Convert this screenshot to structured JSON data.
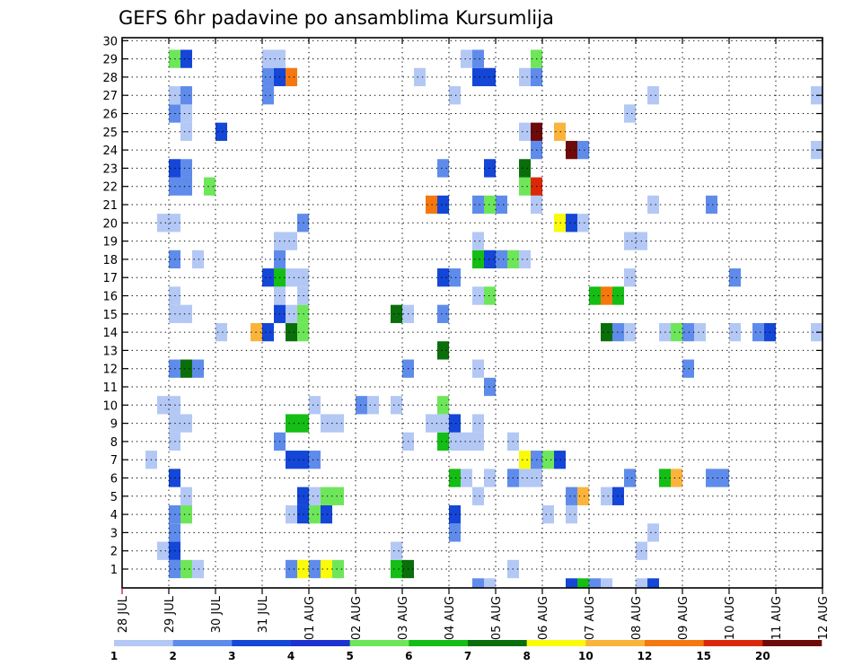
{
  "chart_data": {
    "type": "heatmap",
    "title": "GEFS 6hr padavine po ansamblima Kursumlija",
    "xlabel": "",
    "ylabel": "",
    "x_ticks": [
      "28 JUL",
      "29 JUL",
      "30 JUL",
      "31 JUL",
      "01 AUG",
      "02 AUG",
      "03 AUG",
      "04 AUG",
      "05 AUG",
      "06 AUG",
      "07 AUG",
      "08 AUG",
      "09 AUG",
      "10 AUG",
      "11 AUG",
      "12 AUG"
    ],
    "y_ticks": [
      "1",
      "2",
      "3",
      "4",
      "5",
      "6",
      "7",
      "8",
      "9",
      "10",
      "11",
      "12",
      "13",
      "14",
      "15",
      "16",
      "17",
      "18",
      "19",
      "20",
      "21",
      "22",
      "23",
      "24",
      "25",
      "26",
      "27",
      "28",
      "29",
      "30"
    ],
    "xlim": [
      0,
      60
    ],
    "ylim": [
      0,
      30
    ],
    "grid": true,
    "time_step_hours": 6,
    "colorbar": {
      "labels": [
        "1",
        "2",
        "3",
        "4",
        "5",
        "6",
        "7",
        "8",
        "10",
        "12",
        "15",
        "20"
      ],
      "colors": [
        "#b4c8f5",
        "#5f8ceb",
        "#1446d7",
        "#1e32d2",
        "#6ee65a",
        "#14be14",
        "#0a6e0a",
        "#fafa0a",
        "#fab43c",
        "#f5780f",
        "#dc280a",
        "#6e0a0a"
      ]
    },
    "cells": [
      {
        "m": 1,
        "t": [
          [
            4,
            2
          ],
          [
            5,
            5
          ],
          [
            6,
            1
          ],
          [
            14,
            2
          ],
          [
            15,
            8
          ],
          [
            16,
            2
          ],
          [
            17,
            8
          ],
          [
            18,
            5
          ],
          [
            23,
            6
          ],
          [
            24,
            7
          ],
          [
            33,
            1
          ]
        ]
      },
      {
        "m": 2,
        "t": [
          [
            3,
            1
          ],
          [
            4,
            3
          ],
          [
            23,
            1
          ],
          [
            44,
            1
          ]
        ]
      },
      {
        "m": 3,
        "t": [
          [
            4,
            2
          ],
          [
            28,
            2
          ],
          [
            45,
            1
          ]
        ]
      },
      {
        "m": 4,
        "t": [
          [
            4,
            2
          ],
          [
            5,
            5
          ],
          [
            14,
            1
          ],
          [
            15,
            3
          ],
          [
            16,
            5
          ],
          [
            17,
            3
          ],
          [
            28,
            3
          ],
          [
            36,
            1
          ],
          [
            38,
            1
          ]
        ]
      },
      {
        "m": 5,
        "t": [
          [
            5,
            1
          ],
          [
            15,
            3
          ],
          [
            16,
            1
          ],
          [
            17,
            5
          ],
          [
            18,
            5
          ],
          [
            30,
            1
          ],
          [
            38,
            2
          ],
          [
            39,
            9
          ],
          [
            41,
            1
          ],
          [
            42,
            3
          ]
        ]
      },
      {
        "m": 6,
        "t": [
          [
            4,
            3
          ],
          [
            28,
            6
          ],
          [
            29,
            1
          ],
          [
            31,
            1
          ],
          [
            33,
            2
          ],
          [
            34,
            1
          ],
          [
            35,
            1
          ],
          [
            43,
            2
          ],
          [
            46,
            6
          ],
          [
            47,
            9
          ],
          [
            50,
            2
          ],
          [
            51,
            2
          ]
        ]
      },
      {
        "m": 7,
        "t": [
          [
            2,
            1
          ],
          [
            14,
            3
          ],
          [
            15,
            3
          ],
          [
            16,
            2
          ],
          [
            34,
            8
          ],
          [
            35,
            2
          ],
          [
            36,
            5
          ],
          [
            37,
            3
          ]
        ]
      },
      {
        "m": 8,
        "t": [
          [
            4,
            1
          ],
          [
            13,
            2
          ],
          [
            24,
            1
          ],
          [
            27,
            6
          ],
          [
            28,
            1
          ],
          [
            29,
            1
          ],
          [
            30,
            1
          ],
          [
            33,
            1
          ]
        ]
      },
      {
        "m": 9,
        "t": [
          [
            4,
            1
          ],
          [
            5,
            1
          ],
          [
            14,
            6
          ],
          [
            15,
            6
          ],
          [
            17,
            1
          ],
          [
            18,
            1
          ],
          [
            26,
            1
          ],
          [
            27,
            1
          ],
          [
            28,
            3
          ],
          [
            30,
            1
          ]
        ]
      },
      {
        "m": 10,
        "t": [
          [
            3,
            1
          ],
          [
            4,
            1
          ],
          [
            16,
            1
          ],
          [
            20,
            2
          ],
          [
            21,
            1
          ],
          [
            23,
            1
          ],
          [
            27,
            5
          ]
        ]
      },
      {
        "m": 11,
        "t": [
          [
            31,
            2
          ]
        ]
      },
      {
        "m": 12,
        "t": [
          [
            4,
            2
          ],
          [
            5,
            7
          ],
          [
            6,
            2
          ],
          [
            24,
            2
          ],
          [
            30,
            1
          ],
          [
            48,
            2
          ]
        ]
      },
      {
        "m": 13,
        "t": [
          [
            27,
            7
          ]
        ]
      },
      {
        "m": 14,
        "t": [
          [
            8,
            1
          ],
          [
            11,
            9
          ],
          [
            12,
            3
          ],
          [
            14,
            7
          ],
          [
            15,
            5
          ],
          [
            41,
            7
          ],
          [
            42,
            2
          ],
          [
            43,
            1
          ],
          [
            46,
            1
          ],
          [
            47,
            5
          ],
          [
            48,
            2
          ],
          [
            49,
            1
          ],
          [
            52,
            1
          ],
          [
            54,
            2
          ],
          [
            55,
            3
          ],
          [
            59,
            1
          ]
        ]
      },
      {
        "m": 15,
        "t": [
          [
            4,
            1
          ],
          [
            5,
            1
          ],
          [
            13,
            3
          ],
          [
            14,
            1
          ],
          [
            15,
            5
          ],
          [
            23,
            7
          ],
          [
            24,
            1
          ],
          [
            27,
            2
          ]
        ]
      },
      {
        "m": 16,
        "t": [
          [
            4,
            1
          ],
          [
            13,
            1
          ],
          [
            15,
            1
          ],
          [
            30,
            1
          ],
          [
            31,
            5
          ],
          [
            40,
            6
          ],
          [
            41,
            10
          ],
          [
            42,
            6
          ]
        ]
      },
      {
        "m": 17,
        "t": [
          [
            12,
            3
          ],
          [
            13,
            6
          ],
          [
            14,
            1
          ],
          [
            15,
            1
          ],
          [
            27,
            3
          ],
          [
            28,
            2
          ],
          [
            43,
            1
          ],
          [
            52,
            2
          ]
        ]
      },
      {
        "m": 18,
        "t": [
          [
            4,
            2
          ],
          [
            6,
            1
          ],
          [
            13,
            2
          ],
          [
            30,
            6
          ],
          [
            31,
            3
          ],
          [
            32,
            2
          ],
          [
            33,
            5
          ],
          [
            34,
            1
          ]
        ]
      },
      {
        "m": 19,
        "t": [
          [
            13,
            1
          ],
          [
            14,
            1
          ],
          [
            30,
            1
          ],
          [
            43,
            1
          ],
          [
            44,
            1
          ]
        ]
      },
      {
        "m": 20,
        "t": [
          [
            3,
            1
          ],
          [
            4,
            1
          ],
          [
            15,
            2
          ],
          [
            37,
            8
          ],
          [
            38,
            3
          ],
          [
            39,
            1
          ]
        ]
      },
      {
        "m": 21,
        "t": [
          [
            26,
            10
          ],
          [
            27,
            3
          ],
          [
            30,
            2
          ],
          [
            31,
            5
          ],
          [
            32,
            2
          ],
          [
            35,
            1
          ],
          [
            45,
            1
          ],
          [
            50,
            2
          ]
        ]
      },
      {
        "m": 22,
        "t": [
          [
            4,
            2
          ],
          [
            5,
            2
          ],
          [
            7,
            5
          ],
          [
            34,
            5
          ],
          [
            35,
            11
          ]
        ]
      },
      {
        "m": 23,
        "t": [
          [
            4,
            3
          ],
          [
            5,
            2
          ],
          [
            27,
            2
          ],
          [
            31,
            3
          ],
          [
            34,
            7
          ]
        ]
      },
      {
        "m": 24,
        "t": [
          [
            35,
            2
          ],
          [
            38,
            12
          ],
          [
            39,
            2
          ],
          [
            59,
            1
          ]
        ]
      },
      {
        "m": 25,
        "t": [
          [
            5,
            1
          ],
          [
            8,
            3
          ],
          [
            34,
            1
          ],
          [
            35,
            12
          ],
          [
            37,
            9
          ]
        ]
      },
      {
        "m": 26,
        "t": [
          [
            4,
            2
          ],
          [
            5,
            1
          ],
          [
            43,
            1
          ]
        ]
      },
      {
        "m": 27,
        "t": [
          [
            4,
            1
          ],
          [
            5,
            2
          ],
          [
            12,
            2
          ],
          [
            28,
            1
          ],
          [
            45,
            1
          ],
          [
            59,
            1
          ]
        ]
      },
      {
        "m": 28,
        "t": [
          [
            12,
            2
          ],
          [
            13,
            3
          ],
          [
            14,
            10
          ],
          [
            25,
            1
          ],
          [
            30,
            3
          ],
          [
            31,
            3
          ],
          [
            34,
            1
          ],
          [
            35,
            2
          ]
        ]
      },
      {
        "m": 29,
        "t": [
          [
            4,
            5
          ],
          [
            5,
            3
          ],
          [
            12,
            1
          ],
          [
            13,
            1
          ],
          [
            29,
            1
          ],
          [
            30,
            2
          ],
          [
            35,
            5
          ]
        ]
      }
    ],
    "bottom_row": [
      [
        30,
        2
      ],
      [
        31,
        1
      ],
      [
        38,
        3
      ],
      [
        39,
        6
      ],
      [
        40,
        2
      ],
      [
        41,
        1
      ],
      [
        44,
        1
      ],
      [
        45,
        3
      ]
    ]
  }
}
